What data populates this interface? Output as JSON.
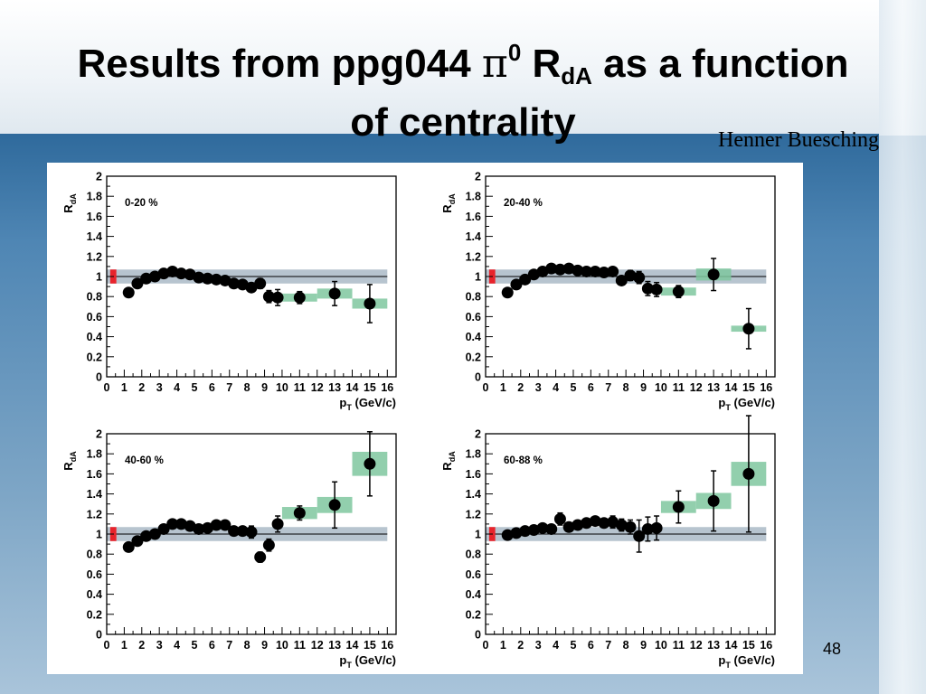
{
  "slide": {
    "title_part1": "Results from ppg044 ",
    "title_pi": "π",
    "title_sup": "0",
    "title_r": " R",
    "title_sub": "dA",
    "title_part2": " as a function",
    "title_line2": "of centrality",
    "author": "Henner Buesching",
    "page_number": "48"
  },
  "colors": {
    "sys_box": "#7fc79f",
    "ref_band": "#9fb0bf",
    "norm_box": "#e8232b",
    "marker": "#000000"
  },
  "chart_data": [
    {
      "type": "scatter",
      "label": "0-20 %",
      "xlabel": "pT (GeV/c)",
      "ylabel": "RdA",
      "xlim": [
        0,
        16.5
      ],
      "ylim": [
        0,
        2
      ],
      "xticks": [
        0,
        1,
        2,
        3,
        4,
        5,
        6,
        7,
        8,
        9,
        10,
        11,
        12,
        13,
        14,
        15,
        16
      ],
      "yticks": [
        0,
        0.2,
        0.4,
        0.6,
        0.8,
        1,
        1.2,
        1.4,
        1.6,
        1.8,
        2
      ],
      "points": [
        {
          "x": 1.25,
          "y": 0.84,
          "err": 0.03,
          "sys": 0.02
        },
        {
          "x": 1.75,
          "y": 0.93,
          "err": 0.03,
          "sys": 0.02
        },
        {
          "x": 2.25,
          "y": 0.98,
          "err": 0.03,
          "sys": 0.02
        },
        {
          "x": 2.75,
          "y": 1.0,
          "err": 0.03,
          "sys": 0.02
        },
        {
          "x": 3.25,
          "y": 1.03,
          "err": 0.03,
          "sys": 0.02
        },
        {
          "x": 3.75,
          "y": 1.05,
          "err": 0.03,
          "sys": 0.03
        },
        {
          "x": 4.25,
          "y": 1.03,
          "err": 0.03,
          "sys": 0.02
        },
        {
          "x": 4.75,
          "y": 1.02,
          "err": 0.03,
          "sys": 0.02
        },
        {
          "x": 5.25,
          "y": 0.99,
          "err": 0.03,
          "sys": 0.02
        },
        {
          "x": 5.75,
          "y": 0.98,
          "err": 0.03,
          "sys": 0.02
        },
        {
          "x": 6.25,
          "y": 0.97,
          "err": 0.03,
          "sys": 0.02
        },
        {
          "x": 6.75,
          "y": 0.96,
          "err": 0.03,
          "sys": 0.02
        },
        {
          "x": 7.25,
          "y": 0.93,
          "err": 0.03,
          "sys": 0.02
        },
        {
          "x": 7.75,
          "y": 0.92,
          "err": 0.03,
          "sys": 0.02
        },
        {
          "x": 8.25,
          "y": 0.89,
          "err": 0.04,
          "sys": 0.02
        },
        {
          "x": 8.75,
          "y": 0.93,
          "err": 0.05,
          "sys": 0.03
        },
        {
          "x": 9.25,
          "y": 0.8,
          "err": 0.06,
          "sys": 0.03
        },
        {
          "x": 9.75,
          "y": 0.79,
          "err": 0.08,
          "sys": 0.03
        },
        {
          "x": 11.0,
          "y": 0.79,
          "err": 0.06,
          "sys": 0.04
        },
        {
          "x": 13.0,
          "y": 0.83,
          "err": 0.12,
          "sys": 0.05
        },
        {
          "x": 15.0,
          "y": 0.73,
          "err": 0.19,
          "sys": 0.05
        }
      ]
    },
    {
      "type": "scatter",
      "label": "20-40 %",
      "xlabel": "pT (GeV/c)",
      "ylabel": "RdA",
      "xlim": [
        0,
        16.5
      ],
      "ylim": [
        0,
        2
      ],
      "xticks": [
        0,
        1,
        2,
        3,
        4,
        5,
        6,
        7,
        8,
        9,
        10,
        11,
        12,
        13,
        14,
        15,
        16
      ],
      "yticks": [
        0,
        0.2,
        0.4,
        0.6,
        0.8,
        1,
        1.2,
        1.4,
        1.6,
        1.8,
        2
      ],
      "points": [
        {
          "x": 1.25,
          "y": 0.84,
          "err": 0.03,
          "sys": 0.02
        },
        {
          "x": 1.75,
          "y": 0.92,
          "err": 0.03,
          "sys": 0.02
        },
        {
          "x": 2.25,
          "y": 0.97,
          "err": 0.03,
          "sys": 0.02
        },
        {
          "x": 2.75,
          "y": 1.02,
          "err": 0.03,
          "sys": 0.02
        },
        {
          "x": 3.25,
          "y": 1.05,
          "err": 0.03,
          "sys": 0.02
        },
        {
          "x": 3.75,
          "y": 1.08,
          "err": 0.03,
          "sys": 0.02
        },
        {
          "x": 4.25,
          "y": 1.07,
          "err": 0.03,
          "sys": 0.03
        },
        {
          "x": 4.75,
          "y": 1.08,
          "err": 0.03,
          "sys": 0.02
        },
        {
          "x": 5.25,
          "y": 1.06,
          "err": 0.03,
          "sys": 0.02
        },
        {
          "x": 5.75,
          "y": 1.05,
          "err": 0.03,
          "sys": 0.02
        },
        {
          "x": 6.25,
          "y": 1.05,
          "err": 0.03,
          "sys": 0.02
        },
        {
          "x": 6.75,
          "y": 1.04,
          "err": 0.03,
          "sys": 0.02
        },
        {
          "x": 7.25,
          "y": 1.05,
          "err": 0.03,
          "sys": 0.02
        },
        {
          "x": 7.75,
          "y": 0.96,
          "err": 0.04,
          "sys": 0.02
        },
        {
          "x": 8.25,
          "y": 1.01,
          "err": 0.05,
          "sys": 0.02
        },
        {
          "x": 8.75,
          "y": 0.99,
          "err": 0.06,
          "sys": 0.03
        },
        {
          "x": 9.25,
          "y": 0.88,
          "err": 0.07,
          "sys": 0.03
        },
        {
          "x": 9.75,
          "y": 0.87,
          "err": 0.07,
          "sys": 0.03
        },
        {
          "x": 11.0,
          "y": 0.85,
          "err": 0.06,
          "sys": 0.04
        },
        {
          "x": 13.0,
          "y": 1.02,
          "err": 0.16,
          "sys": 0.06
        },
        {
          "x": 15.0,
          "y": 0.48,
          "err": 0.2,
          "sys": 0.03
        }
      ]
    },
    {
      "type": "scatter",
      "label": "40-60 %",
      "xlabel": "pT (GeV/c)",
      "ylabel": "RdA",
      "xlim": [
        0,
        16.5
      ],
      "ylim": [
        0,
        2
      ],
      "xticks": [
        0,
        1,
        2,
        3,
        4,
        5,
        6,
        7,
        8,
        9,
        10,
        11,
        12,
        13,
        14,
        15,
        16
      ],
      "yticks": [
        0,
        0.2,
        0.4,
        0.6,
        0.8,
        1,
        1.2,
        1.4,
        1.6,
        1.8,
        2
      ],
      "points": [
        {
          "x": 1.25,
          "y": 0.87,
          "err": 0.03,
          "sys": 0.02
        },
        {
          "x": 1.75,
          "y": 0.93,
          "err": 0.03,
          "sys": 0.02
        },
        {
          "x": 2.25,
          "y": 0.98,
          "err": 0.03,
          "sys": 0.02
        },
        {
          "x": 2.75,
          "y": 1.0,
          "err": 0.03,
          "sys": 0.02
        },
        {
          "x": 3.25,
          "y": 1.05,
          "err": 0.03,
          "sys": 0.02
        },
        {
          "x": 3.75,
          "y": 1.1,
          "err": 0.03,
          "sys": 0.02
        },
        {
          "x": 4.25,
          "y": 1.1,
          "err": 0.03,
          "sys": 0.03
        },
        {
          "x": 4.75,
          "y": 1.08,
          "err": 0.03,
          "sys": 0.02
        },
        {
          "x": 5.25,
          "y": 1.05,
          "err": 0.03,
          "sys": 0.02
        },
        {
          "x": 5.75,
          "y": 1.06,
          "err": 0.03,
          "sys": 0.02
        },
        {
          "x": 6.25,
          "y": 1.09,
          "err": 0.03,
          "sys": 0.02
        },
        {
          "x": 6.75,
          "y": 1.09,
          "err": 0.03,
          "sys": 0.03
        },
        {
          "x": 7.25,
          "y": 1.03,
          "err": 0.03,
          "sys": 0.02
        },
        {
          "x": 7.75,
          "y": 1.03,
          "err": 0.04,
          "sys": 0.02
        },
        {
          "x": 8.25,
          "y": 1.02,
          "err": 0.06,
          "sys": 0.02
        },
        {
          "x": 8.75,
          "y": 0.77,
          "err": 0.05,
          "sys": 0.02
        },
        {
          "x": 9.25,
          "y": 0.89,
          "err": 0.06,
          "sys": 0.03
        },
        {
          "x": 9.75,
          "y": 1.1,
          "err": 0.08,
          "sys": 0.03
        },
        {
          "x": 11.0,
          "y": 1.21,
          "err": 0.07,
          "sys": 0.06
        },
        {
          "x": 13.0,
          "y": 1.29,
          "err": 0.23,
          "sys": 0.08
        },
        {
          "x": 15.0,
          "y": 1.7,
          "err": 0.32,
          "sys": 0.12
        }
      ]
    },
    {
      "type": "scatter",
      "label": "60-88 %",
      "xlabel": "pT (GeV/c)",
      "ylabel": "RdA",
      "xlim": [
        0,
        16.5
      ],
      "ylim": [
        0,
        2
      ],
      "xticks": [
        0,
        1,
        2,
        3,
        4,
        5,
        6,
        7,
        8,
        9,
        10,
        11,
        12,
        13,
        14,
        15,
        16
      ],
      "yticks": [
        0,
        0.2,
        0.4,
        0.6,
        0.8,
        1,
        1.2,
        1.4,
        1.6,
        1.8,
        2
      ],
      "points": [
        {
          "x": 1.25,
          "y": 0.99,
          "err": 0.03,
          "sys": 0.02
        },
        {
          "x": 1.75,
          "y": 1.01,
          "err": 0.03,
          "sys": 0.02
        },
        {
          "x": 2.25,
          "y": 1.03,
          "err": 0.03,
          "sys": 0.02
        },
        {
          "x": 2.75,
          "y": 1.04,
          "err": 0.03,
          "sys": 0.02
        },
        {
          "x": 3.25,
          "y": 1.06,
          "err": 0.03,
          "sys": 0.02
        },
        {
          "x": 3.75,
          "y": 1.05,
          "err": 0.03,
          "sys": 0.02
        },
        {
          "x": 4.25,
          "y": 1.15,
          "err": 0.06,
          "sys": 0.03
        },
        {
          "x": 4.75,
          "y": 1.07,
          "err": 0.03,
          "sys": 0.02
        },
        {
          "x": 5.25,
          "y": 1.09,
          "err": 0.03,
          "sys": 0.02
        },
        {
          "x": 5.75,
          "y": 1.11,
          "err": 0.03,
          "sys": 0.02
        },
        {
          "x": 6.25,
          "y": 1.13,
          "err": 0.04,
          "sys": 0.03
        },
        {
          "x": 6.75,
          "y": 1.11,
          "err": 0.04,
          "sys": 0.02
        },
        {
          "x": 7.25,
          "y": 1.12,
          "err": 0.06,
          "sys": 0.02
        },
        {
          "x": 7.75,
          "y": 1.09,
          "err": 0.06,
          "sys": 0.02
        },
        {
          "x": 8.25,
          "y": 1.07,
          "err": 0.07,
          "sys": 0.02
        },
        {
          "x": 8.75,
          "y": 0.98,
          "err": 0.16,
          "sys": 0.03
        },
        {
          "x": 9.25,
          "y": 1.05,
          "err": 0.12,
          "sys": 0.03
        },
        {
          "x": 9.75,
          "y": 1.06,
          "err": 0.12,
          "sys": 0.03
        },
        {
          "x": 11.0,
          "y": 1.27,
          "err": 0.16,
          "sys": 0.06
        },
        {
          "x": 13.0,
          "y": 1.33,
          "err": 0.3,
          "sys": 0.08
        },
        {
          "x": 15.0,
          "y": 1.6,
          "err": 0.58,
          "sys": 0.12
        }
      ]
    }
  ]
}
